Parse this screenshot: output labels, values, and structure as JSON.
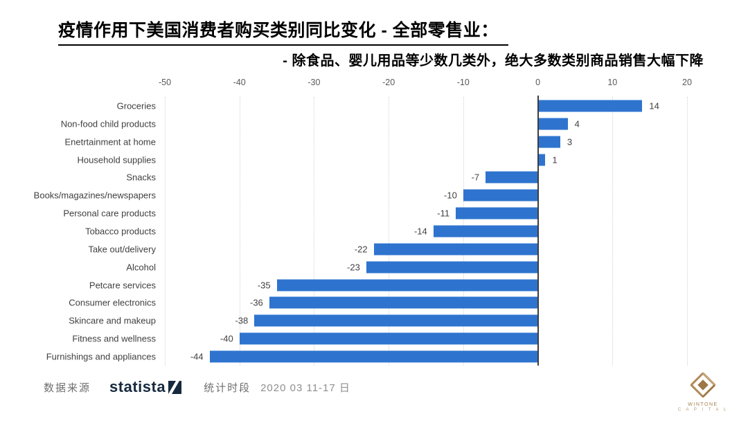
{
  "header": {
    "title": "疫情作用下美国消费者购买类别同比变化 - 全部零售业：",
    "subtitle": "- 除食品、婴儿用品等少数几类外，绝大多数类别商品销售大幅下降"
  },
  "chart_data": {
    "type": "bar",
    "orientation": "horizontal",
    "title": "",
    "xlabel": "",
    "ylabel": "",
    "categories": [
      "Groceries",
      "Non-food child products",
      "Enetrtainment at home",
      "Household supplies",
      "Snacks",
      "Books/magazines/newspapers",
      "Personal care products",
      "Tobacco products",
      "Take out/delivery",
      "Alcohol",
      "Petcare services",
      "Consumer electronics",
      "Skincare and makeup",
      "Fitness and wellness",
      "Furnishings and appliances"
    ],
    "values": [
      14,
      4,
      3,
      1,
      -7,
      -10,
      -11,
      -14,
      -22,
      -23,
      -35,
      -36,
      -38,
      -40,
      -44
    ],
    "xlim": [
      -50,
      20
    ],
    "xticks": [
      -50,
      -40,
      -30,
      -20,
      -10,
      0,
      10,
      20
    ],
    "grid": "vertical-dotted",
    "data_labels": true,
    "legend": "none",
    "bar_color": "#2e74cf"
  },
  "footer": {
    "source_label": "数据来源",
    "source_brand": "statista",
    "period_label": "统计时段",
    "period_value": "2020 03 11-17 日",
    "logo_line1": "WINTONE",
    "logo_line2": "C A P I T A L"
  },
  "colors": {
    "bar": "#2e74cf",
    "zero_axis": "#3d3d3d",
    "gridline": "#d2d2d2",
    "tick_text": "#595959",
    "label_text": "#404040",
    "statista_navy": "#16293e",
    "wintone_gold": "#b08a58"
  }
}
